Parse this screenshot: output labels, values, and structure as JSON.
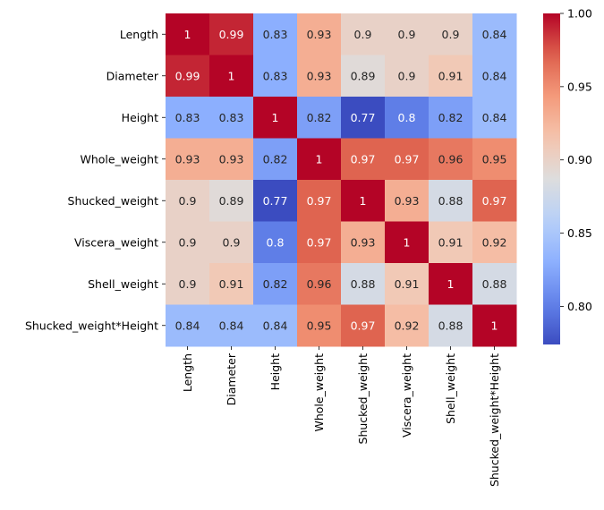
{
  "chart_data": {
    "type": "heatmap",
    "title": "",
    "xlabel": "",
    "ylabel": "",
    "rows": [
      "Length",
      "Diameter",
      "Height",
      "Whole_weight",
      "Shucked_weight",
      "Viscera_weight",
      "Shell_weight",
      "Shucked_weight*Height"
    ],
    "columns": [
      "Length",
      "Diameter",
      "Height",
      "Whole_weight",
      "Shucked_weight",
      "Viscera_weight",
      "Shell_weight",
      "Shucked_weight*Height"
    ],
    "values": [
      [
        1,
        0.99,
        0.83,
        0.93,
        0.9,
        0.9,
        0.9,
        0.84
      ],
      [
        0.99,
        1,
        0.83,
        0.93,
        0.89,
        0.9,
        0.91,
        0.84
      ],
      [
        0.83,
        0.83,
        1,
        0.82,
        0.77,
        0.8,
        0.82,
        0.84
      ],
      [
        0.93,
        0.93,
        0.82,
        1,
        0.97,
        0.97,
        0.96,
        0.95
      ],
      [
        0.9,
        0.89,
        0.77,
        0.97,
        1,
        0.93,
        0.88,
        0.97
      ],
      [
        0.9,
        0.9,
        0.8,
        0.97,
        0.93,
        1,
        0.91,
        0.92
      ],
      [
        0.9,
        0.91,
        0.82,
        0.96,
        0.88,
        0.91,
        1,
        0.88
      ],
      [
        0.84,
        0.84,
        0.84,
        0.95,
        0.97,
        0.92,
        0.88,
        1
      ]
    ],
    "colormap": "coolwarm",
    "colorbar": {
      "range": [
        0.774,
        1.0
      ],
      "ticks": [
        0.8,
        0.85,
        0.9,
        0.95,
        1.0
      ],
      "tick_labels": [
        "0.80",
        "0.85",
        "0.90",
        "0.95",
        "1.00"
      ]
    },
    "annotate": true
  }
}
